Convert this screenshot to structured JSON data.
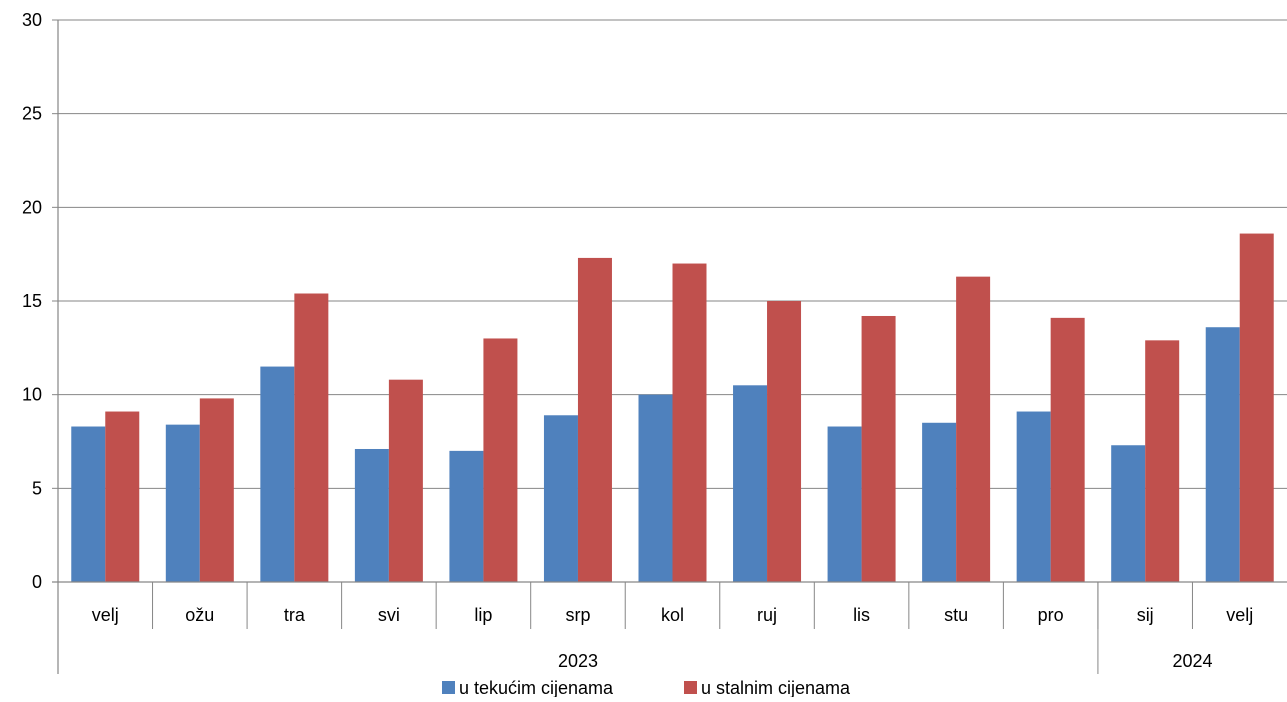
{
  "colors": {
    "series1": "#4f81bd",
    "series2": "#c0504d",
    "grid": "#868686",
    "axis": "#868686"
  },
  "chart_data": {
    "type": "bar",
    "categories": [
      "velj",
      "ožu",
      "tra",
      "svi",
      "lip",
      "srp",
      "kol",
      "ruj",
      "lis",
      "stu",
      "pro",
      "sij",
      "velj"
    ],
    "groups": [
      {
        "label": "2023",
        "count": 11
      },
      {
        "label": "2024",
        "count": 2
      }
    ],
    "series": [
      {
        "name": "u tekućim cijenama",
        "values": [
          8.3,
          8.4,
          11.5,
          7.1,
          7.0,
          8.9,
          10.0,
          10.5,
          8.3,
          8.5,
          9.1,
          7.3,
          13.6
        ]
      },
      {
        "name": "u stalnim cijenama",
        "values": [
          9.1,
          9.8,
          15.4,
          10.8,
          13.0,
          17.3,
          17.0,
          15.0,
          14.2,
          16.3,
          14.1,
          12.9,
          18.6
        ]
      }
    ],
    "yticks": [
      "0",
      "5",
      "10",
      "15",
      "20",
      "25",
      "30"
    ],
    "ylim": [
      0,
      30
    ],
    "grid": true,
    "legend_position": "bottom-center"
  }
}
